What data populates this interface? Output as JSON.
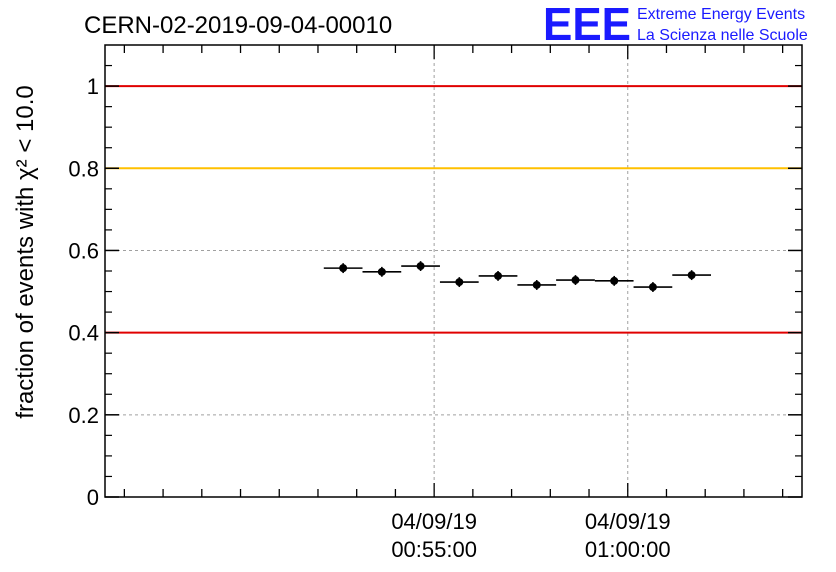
{
  "header": {
    "run_id": "CERN-02-2019-09-04-00010"
  },
  "logo": {
    "letters": "EEE",
    "line1": "Extreme Energy Events",
    "line2": "La Scienza nelle Scuole",
    "color": "#1a1aff"
  },
  "chart_data": {
    "type": "scatter",
    "title": "CERN-02-2019-09-04-00010",
    "ylabel": "fraction of events with χ² < 10.0",
    "ylim": [
      0,
      1.1
    ],
    "xlim_minutes": [
      -8.5,
      9.5
    ],
    "grid": true,
    "x_ticks": [
      {
        "date": "04/09/19",
        "time": "00:55:00",
        "minute": 0
      },
      {
        "date": "04/09/19",
        "time": "01:00:00",
        "minute": 5
      }
    ],
    "y_ticks": [
      "0",
      "0.2",
      "0.4",
      "0.6",
      "0.8",
      "1"
    ],
    "y_tick_values": [
      0,
      0.2,
      0.4,
      0.6,
      0.8,
      1.0
    ],
    "thresholds": [
      {
        "value": 1.0,
        "color": "#e00000"
      },
      {
        "value": 0.8,
        "color": "#ffc000"
      },
      {
        "value": 0.4,
        "color": "#e00000"
      }
    ],
    "points": [
      {
        "x_start": -2.85,
        "x_end": -1.85,
        "y": 0.557,
        "err": 0.012
      },
      {
        "x_start": -1.85,
        "x_end": -0.85,
        "y": 0.548,
        "err": 0.012
      },
      {
        "x_start": -0.85,
        "x_end": 0.15,
        "y": 0.562,
        "err": 0.012
      },
      {
        "x_start": 0.15,
        "x_end": 1.15,
        "y": 0.523,
        "err": 0.012
      },
      {
        "x_start": 1.15,
        "x_end": 2.15,
        "y": 0.538,
        "err": 0.012
      },
      {
        "x_start": 2.15,
        "x_end": 3.15,
        "y": 0.516,
        "err": 0.012
      },
      {
        "x_start": 3.15,
        "x_end": 4.15,
        "y": 0.528,
        "err": 0.012
      },
      {
        "x_start": 4.15,
        "x_end": 5.15,
        "y": 0.526,
        "err": 0.012
      },
      {
        "x_start": 5.15,
        "x_end": 6.15,
        "y": 0.511,
        "err": 0.012
      },
      {
        "x_start": 6.15,
        "x_end": 7.15,
        "y": 0.54,
        "err": 0.012
      }
    ]
  }
}
